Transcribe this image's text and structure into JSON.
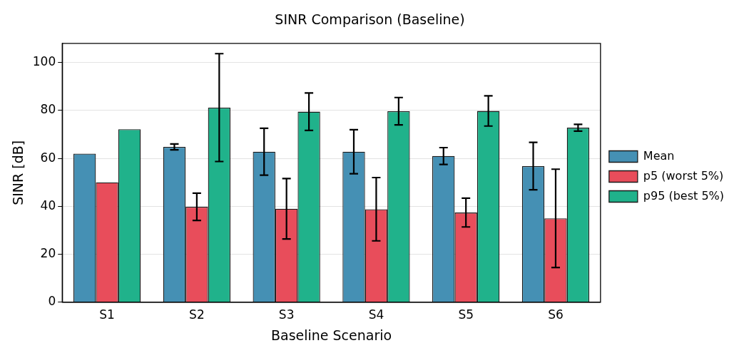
{
  "chart_data": {
    "type": "bar",
    "title": "SINR Comparison (Baseline)",
    "xlabel": "Baseline Scenario",
    "ylabel": "SINR [dB]",
    "categories": [
      "S1",
      "S2",
      "S3",
      "S4",
      "S5",
      "S6"
    ],
    "series": [
      {
        "name": "Mean",
        "color": "#4590b4",
        "values": [
          62,
          64.8,
          62.8,
          62.8,
          61,
          56.8
        ],
        "errors": [
          null,
          1.2,
          9.8,
          9.2,
          3.5,
          9.9
        ]
      },
      {
        "name": "p5 (worst 5%)",
        "color": "#e84d5b",
        "values": [
          50,
          39.8,
          39,
          38.8,
          37.4,
          35
        ],
        "errors": [
          null,
          5.7,
          12.6,
          13.2,
          6,
          20.5
        ]
      },
      {
        "name": "p95 (best 5%)",
        "color": "#20b28b",
        "values": [
          72.2,
          81.2,
          79.5,
          79.7,
          79.8,
          72.8
        ],
        "errors": [
          null,
          22.5,
          7.8,
          5.7,
          6.3,
          1.4
        ]
      }
    ],
    "ylim": [
      0,
      108
    ],
    "yticks": [
      0,
      20,
      40,
      60,
      80,
      100
    ],
    "grid": "y",
    "legend": "right"
  }
}
